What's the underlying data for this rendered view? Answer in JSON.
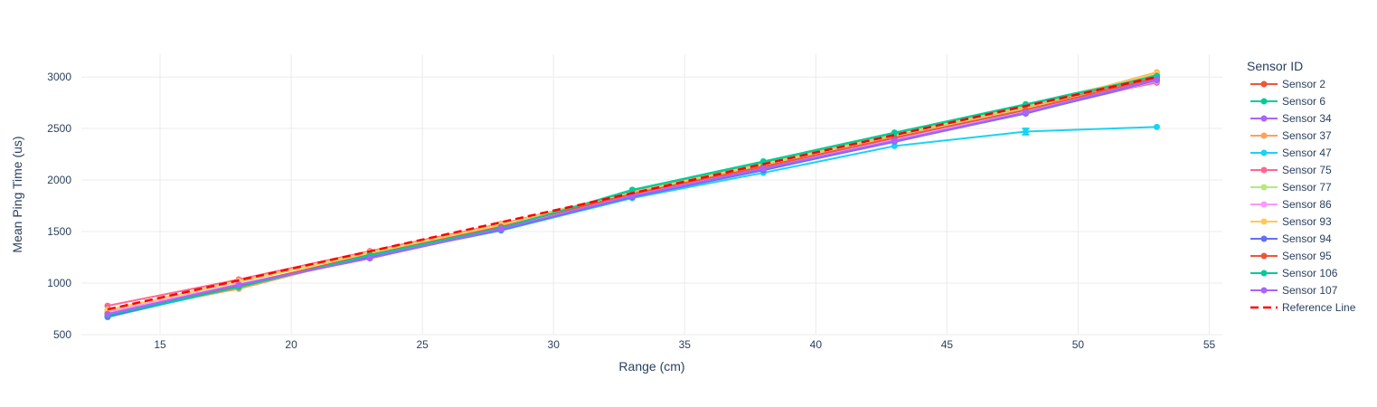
{
  "chart_data": {
    "type": "line",
    "title": "",
    "xlabel": "Range (cm)",
    "ylabel": "Mean Ping Time (us)",
    "xlim": [
      12.0,
      55.5
    ],
    "ylim": [
      500,
      3220
    ],
    "xticks": [
      15,
      20,
      25,
      30,
      35,
      40,
      45,
      50,
      55
    ],
    "yticks": [
      500,
      1000,
      1500,
      2000,
      2500,
      3000
    ],
    "grid": true,
    "legend": {
      "title": "Sensor ID",
      "position": "right"
    },
    "x": [
      13,
      18,
      23,
      28,
      33,
      38,
      43,
      48,
      53
    ],
    "series": [
      {
        "name": "Sensor 2",
        "color": "#EF553B",
        "values": [
          700,
          965,
          1280,
          1545,
          1870,
          2155,
          2430,
          2700,
          3000
        ]
      },
      {
        "name": "Sensor 6",
        "color": "#00CC96",
        "values": [
          680,
          955,
          1265,
          1530,
          1905,
          2180,
          2460,
          2735,
          3020
        ]
      },
      {
        "name": "Sensor 34",
        "color": "#AB63FA",
        "values": [
          690,
          975,
          1245,
          1520,
          1840,
          2100,
          2370,
          2650,
          2955
        ]
      },
      {
        "name": "Sensor 37",
        "color": "#FFA15A",
        "values": [
          700,
          945,
          1270,
          1550,
          1880,
          2145,
          2440,
          2700,
          3045
        ]
      },
      {
        "name": "Sensor 47",
        "color": "#19D3F3",
        "values": [
          670,
          965,
          1260,
          1510,
          1825,
          2070,
          2330,
          2470,
          2515
        ]
      },
      {
        "name": "Sensor 75",
        "color": "#FF6692",
        "values": [
          780,
          1035,
          1310,
          1575,
          1880,
          2120,
          2400,
          2690,
          2945
        ]
      },
      {
        "name": "Sensor 77",
        "color": "#B6E880",
        "values": [
          740,
          1010,
          1290,
          1570,
          1870,
          2140,
          2420,
          2690,
          2990
        ]
      },
      {
        "name": "Sensor 86",
        "color": "#FF97FF",
        "values": [
          720,
          990,
          1255,
          1555,
          1850,
          2110,
          2390,
          2670,
          2960
        ]
      },
      {
        "name": "Sensor 93",
        "color": "#FECB52",
        "values": [
          735,
          1020,
          1300,
          1565,
          1890,
          2160,
          2445,
          2715,
          3035
        ]
      },
      {
        "name": "Sensor 94",
        "color": "#636EFA",
        "values": [
          675,
          975,
          1250,
          1515,
          1835,
          2095,
          2375,
          2645,
          2970
        ]
      },
      {
        "name": "Sensor 95",
        "color": "#EF553B",
        "values": [
          700,
          980,
          1275,
          1545,
          1865,
          2130,
          2410,
          2680,
          2990
        ]
      },
      {
        "name": "Sensor 106",
        "color": "#00CC96",
        "values": [
          690,
          960,
          1270,
          1535,
          1900,
          2175,
          2455,
          2730,
          3010
        ]
      },
      {
        "name": "Sensor 107",
        "color": "#AB63FA",
        "values": [
          700,
          985,
          1240,
          1525,
          1845,
          2110,
          2380,
          2655,
          2975
        ]
      }
    ],
    "reference_line": {
      "name": "Reference Line",
      "color": "#FF0000",
      "dash": "dash",
      "x": [
        13,
        53
      ],
      "values": [
        745,
        3000
      ]
    },
    "error_bars": {
      "series": "Sensor 47",
      "x": 48,
      "value": 2470,
      "error": 30
    }
  }
}
